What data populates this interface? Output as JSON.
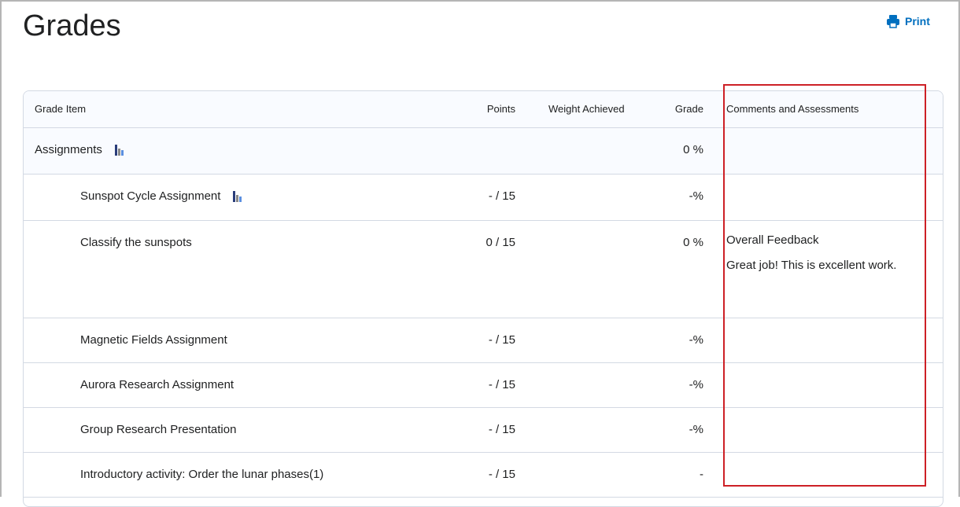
{
  "page": {
    "title": "Grades",
    "print_label": "Print"
  },
  "table": {
    "headers": {
      "item": "Grade Item",
      "points": "Points",
      "weight": "Weight Achieved",
      "grade": "Grade",
      "comments": "Comments and Assessments"
    },
    "rows": [
      {
        "item": "Assignments",
        "points": "",
        "grade": "0 %",
        "category": true,
        "stats_icon": true
      },
      {
        "item": "Sunspot Cycle Assignment",
        "points": "- / 15",
        "grade": "-%",
        "stats_icon": true
      },
      {
        "item": "Classify the sunspots",
        "points": "0 / 15",
        "grade": "0 %",
        "feedback_title": "Overall Feedback",
        "feedback": "Great job! This is excellent work."
      },
      {
        "item": "Magnetic Fields Assignment",
        "points": "- / 15",
        "grade": "-%"
      },
      {
        "item": "Aurora Research Assignment",
        "points": "- / 15",
        "grade": "-%"
      },
      {
        "item": "Group Research Presentation",
        "points": "- / 15",
        "grade": "-%"
      },
      {
        "item": "Introductory activity: Order the lunar phases(1)",
        "points": "- / 15",
        "grade": "-"
      }
    ]
  },
  "colors": {
    "accent": "#006fbf",
    "highlight": "#cd2026"
  }
}
